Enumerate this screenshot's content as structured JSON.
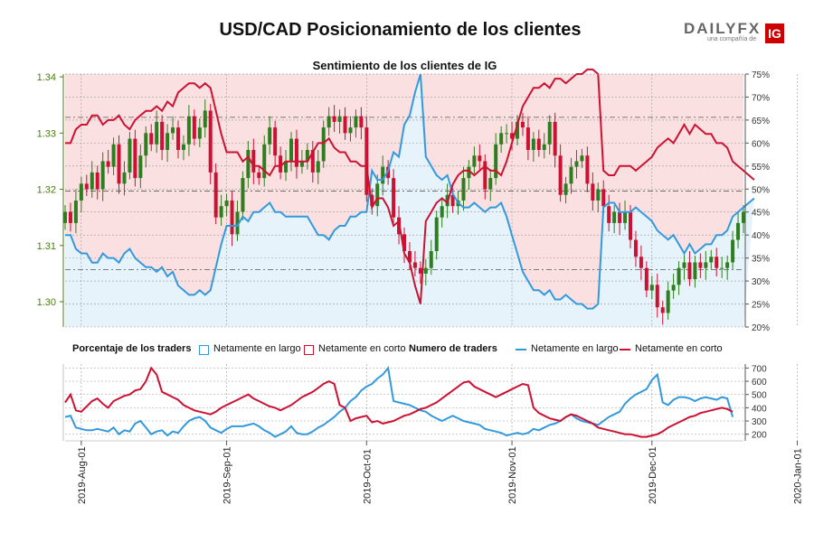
{
  "header": {
    "title": "USD/CAD Posicionamiento de los clientes",
    "brand_main": "DAILY",
    "brand_fx": "FX",
    "brand_sub": "una compañía de",
    "brand_box": "IG"
  },
  "colors": {
    "long": "#3399dd",
    "short": "#cc1133",
    "up_candle": "#2e7d1e",
    "down_candle": "#cc1133",
    "long_fill": "#e6f3fb",
    "short_fill": "#fae0e0",
    "grid": "#999999",
    "price_axis": "#4a7a10"
  },
  "chart_data": [
    {
      "type": "candlestick",
      "title": "Sentimiento de los clientes de IG",
      "x_ticks": [
        "2019-Aug-01",
        "2019-Sep-01",
        "2019-Oct-01",
        "2019-Nov-01",
        "2019-Dec-01",
        "2020-Jan-01"
      ],
      "y_left_ticks": [
        "1.30",
        "1.31",
        "1.32",
        "1.33",
        "1.34"
      ],
      "y_left_range": [
        1.2955,
        1.3405
      ],
      "y_right_ticks": [
        "20%",
        "25%",
        "30%",
        "35%",
        "40%",
        "45%",
        "50%",
        "55%",
        "60%",
        "65%",
        "70%",
        "75%"
      ],
      "y_right_range": [
        20,
        75
      ],
      "grid": true,
      "candles_close": [
        1.316,
        1.314,
        1.318,
        1.321,
        1.32,
        1.323,
        1.32,
        1.325,
        1.324,
        1.328,
        1.321,
        1.323,
        1.329,
        1.322,
        1.326,
        1.33,
        1.328,
        1.332,
        1.327,
        1.33,
        1.331,
        1.327,
        1.328,
        1.333,
        1.329,
        1.331,
        1.334,
        1.323,
        1.315,
        1.317,
        1.318,
        1.312,
        1.316,
        1.322,
        1.327,
        1.323,
        1.322,
        1.328,
        1.331,
        1.326,
        1.323,
        1.325,
        1.329,
        1.324,
        1.325,
        1.327,
        1.323,
        1.325,
        1.331,
        1.333,
        1.332,
        1.333,
        1.33,
        1.331,
        1.333,
        1.331,
        1.319,
        1.317,
        1.321,
        1.324,
        1.322,
        1.315,
        1.312,
        1.309,
        1.307,
        1.306,
        1.305,
        1.306,
        1.309,
        1.315,
        1.317,
        1.319,
        1.317,
        1.318,
        1.322,
        1.324,
        1.326,
        1.325,
        1.32,
        1.322,
        1.328,
        1.33,
        1.33,
        1.329,
        1.332,
        1.331,
        1.327,
        1.329,
        1.327,
        1.328,
        1.332,
        1.326,
        1.319,
        1.321,
        1.324,
        1.325,
        1.326,
        1.321,
        1.318,
        1.32,
        1.317,
        1.314,
        1.316,
        1.314,
        1.316,
        1.311,
        1.308,
        1.306,
        1.302,
        1.303,
        1.299,
        1.298,
        1.302,
        1.303,
        1.306,
        1.307,
        1.304,
        1.307,
        1.306,
        1.307,
        1.308,
        1.306,
        1.306,
        1.307,
        1.311,
        1.314,
        1.316
      ],
      "long_pct": [
        40,
        40,
        37,
        36,
        36,
        34,
        34,
        36,
        35,
        35,
        34,
        36,
        37,
        35,
        34,
        33,
        33,
        32,
        33,
        31,
        32,
        29,
        28,
        27,
        27,
        28,
        27,
        28,
        33,
        38,
        42,
        42,
        42,
        44,
        43,
        45,
        45,
        46,
        47,
        45,
        45,
        44,
        44,
        44,
        44,
        44,
        42,
        40,
        40,
        39,
        41,
        42,
        42,
        44,
        44,
        45,
        45,
        54,
        52,
        52,
        54,
        58,
        57,
        64,
        66,
        71,
        75,
        57,
        55,
        53,
        52,
        53,
        49,
        47,
        46,
        46,
        47,
        46,
        45,
        46,
        46,
        47,
        44,
        40,
        36,
        32,
        30,
        28,
        28,
        27,
        28,
        26,
        26,
        27,
        26,
        25,
        25,
        24,
        24,
        25,
        46,
        47,
        47,
        45,
        45,
        45,
        46,
        45,
        44,
        43,
        41,
        40,
        39,
        40,
        38,
        36,
        38,
        36,
        37,
        38,
        38,
        40,
        40,
        41,
        44,
        45,
        46,
        47,
        48
      ],
      "short_pct": [
        60,
        60,
        63,
        64,
        64,
        66,
        66,
        64,
        65,
        65,
        66,
        64,
        63,
        65,
        66,
        67,
        67,
        68,
        67,
        69,
        68,
        71,
        72,
        73,
        73,
        72,
        73,
        72,
        67,
        62,
        58,
        58,
        58,
        56,
        57,
        55,
        55,
        54,
        53,
        55,
        55,
        56,
        56,
        56,
        56,
        56,
        58,
        60,
        60,
        61,
        59,
        58,
        58,
        56,
        56,
        55,
        55,
        46,
        48,
        48,
        46,
        42,
        43,
        36,
        34,
        29,
        25,
        43,
        45,
        47,
        48,
        47,
        51,
        53,
        54,
        54,
        53,
        54,
        55,
        54,
        54,
        53,
        56,
        60,
        64,
        68,
        70,
        72,
        72,
        73,
        72,
        74,
        74,
        73,
        74,
        75,
        75,
        76,
        76,
        75,
        54,
        53,
        53,
        55,
        55,
        55,
        54,
        55,
        56,
        57,
        59,
        60,
        61,
        60,
        62,
        64,
        62,
        64,
        63,
        62,
        62,
        60,
        60,
        59,
        56,
        55,
        54,
        53,
        52
      ]
    },
    {
      "type": "line",
      "title": "Numero de traders",
      "y_ticks": [
        "200",
        "300",
        "400",
        "500",
        "600",
        "700"
      ],
      "y_range": [
        150,
        730
      ],
      "series": [
        {
          "name": "Netamente en largo",
          "values": [
            330,
            340,
            250,
            240,
            230,
            230,
            240,
            230,
            220,
            250,
            200,
            230,
            220,
            280,
            300,
            250,
            200,
            220,
            230,
            190,
            220,
            210,
            260,
            300,
            320,
            330,
            300,
            250,
            230,
            210,
            240,
            260,
            260,
            260,
            270,
            280,
            260,
            230,
            210,
            180,
            200,
            220,
            260,
            210,
            200,
            200,
            220,
            250,
            270,
            300,
            330,
            370,
            400,
            450,
            480,
            530,
            560,
            580,
            620,
            650,
            700,
            450,
            440,
            430,
            420,
            400,
            380,
            370,
            340,
            320,
            300,
            320,
            340,
            320,
            300,
            290,
            280,
            270,
            240,
            230,
            220,
            210,
            190,
            200,
            210,
            200,
            210,
            240,
            230,
            250,
            270,
            280,
            300,
            330,
            350,
            320,
            300,
            290,
            280,
            270,
            300,
            330,
            350,
            370,
            430,
            470,
            500,
            520,
            540,
            610,
            650,
            440,
            420,
            460,
            480,
            480,
            470,
            450,
            470,
            480,
            470,
            460,
            480,
            470,
            330
          ]
        },
        {
          "name": "Netamente en corto",
          "values": [
            440,
            500,
            380,
            370,
            410,
            450,
            470,
            430,
            400,
            450,
            470,
            490,
            500,
            530,
            540,
            600,
            700,
            650,
            520,
            500,
            480,
            460,
            420,
            400,
            380,
            370,
            360,
            350,
            370,
            400,
            420,
            440,
            460,
            480,
            500,
            470,
            450,
            430,
            410,
            400,
            380,
            400,
            420,
            450,
            480,
            500,
            520,
            550,
            580,
            600,
            580,
            420,
            400,
            300,
            320,
            330,
            340,
            290,
            300,
            280,
            290,
            300,
            320,
            340,
            350,
            370,
            390,
            400,
            420,
            440,
            470,
            500,
            530,
            560,
            590,
            600,
            560,
            540,
            520,
            500,
            480,
            500,
            520,
            540,
            560,
            580,
            570,
            400,
            360,
            340,
            320,
            310,
            300,
            330,
            350,
            340,
            320,
            300,
            280,
            250,
            240,
            230,
            220,
            210,
            200,
            200,
            190,
            180,
            180,
            190,
            200,
            220,
            250,
            270,
            290,
            310,
            330,
            340,
            360,
            370,
            380,
            390,
            400,
            390,
            370
          ]
        }
      ]
    }
  ],
  "legend": {
    "pct_title": "Porcentaje de los traders",
    "pct_long": "Netamente en largo",
    "pct_short": "Netamente en corto",
    "num_title": "Numero de traders",
    "num_long": "Netamente en largo",
    "num_short": "Netamente en corto"
  }
}
